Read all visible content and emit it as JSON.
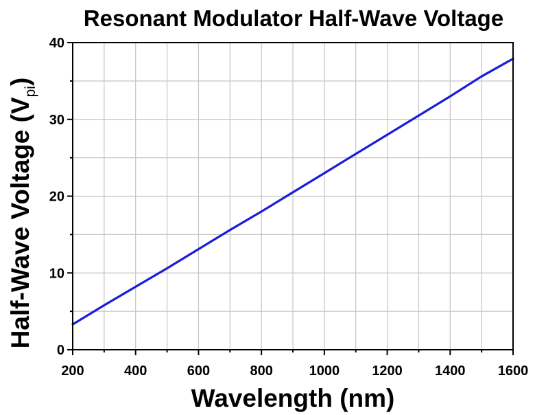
{
  "chart_data": {
    "type": "line",
    "title": "Resonant Modulator Half-Wave Voltage",
    "xlabel": "Wavelength (nm)",
    "ylabel": {
      "text": "Half-Wave Voltage (V",
      "subscript": "pi",
      "close": ")"
    },
    "xlim": [
      200,
      1600
    ],
    "ylim": [
      0,
      40
    ],
    "x_ticks": [
      "200",
      "400",
      "600",
      "800",
      "1000",
      "1200",
      "1400",
      "1600"
    ],
    "y_ticks": [
      "0",
      "10",
      "20",
      "30",
      "40"
    ],
    "grid": true,
    "series": [
      {
        "color": "#1a1adb",
        "x": [
          200,
          300,
          400,
          500,
          600,
          700,
          800,
          900,
          1000,
          1100,
          1200,
          1300,
          1400,
          1500,
          1600
        ],
        "y": [
          3.3,
          5.8,
          8.2,
          10.6,
          13.1,
          15.6,
          18.0,
          20.5,
          23.0,
          25.5,
          28.0,
          30.5,
          33.0,
          35.6,
          37.9
        ]
      }
    ]
  }
}
